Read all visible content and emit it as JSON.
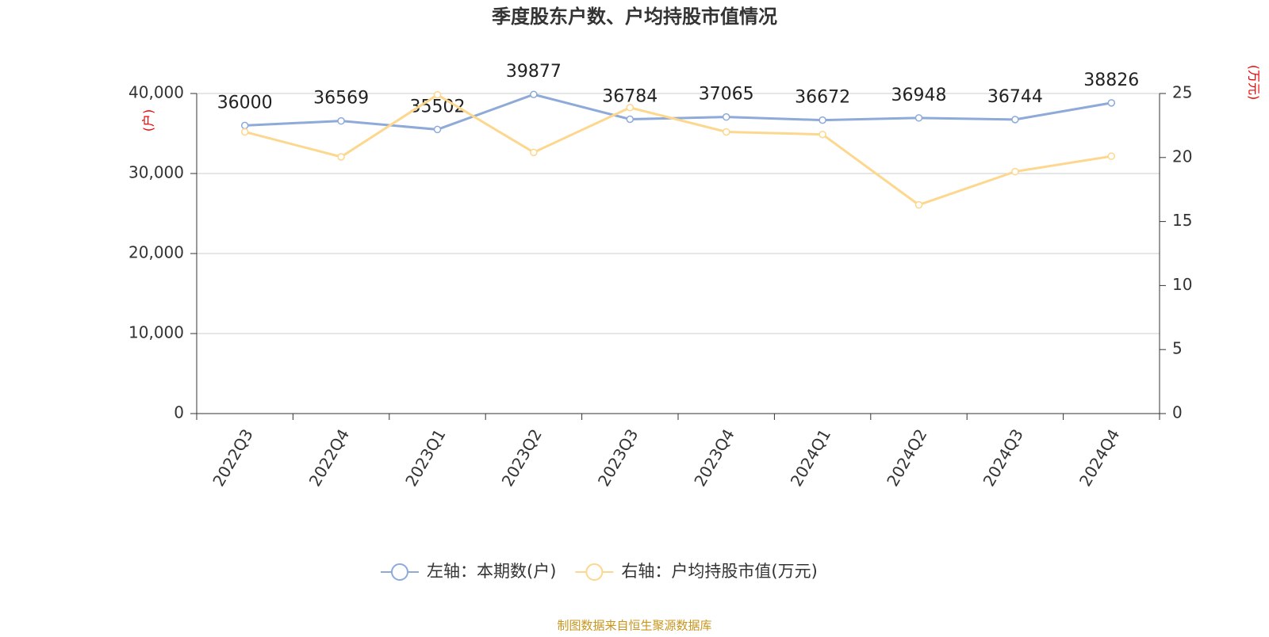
{
  "chart_data": {
    "type": "line",
    "title": "季度股东户数、户均持股市值情况",
    "y_label": "(户)",
    "y2_label": "(万元)",
    "source": "制图数据来自恒生聚源数据库",
    "categories": [
      "2022Q3",
      "2022Q4",
      "2023Q1",
      "2023Q2",
      "2023Q3",
      "2023Q4",
      "2024Q1",
      "2024Q2",
      "2024Q3",
      "2024Q4"
    ],
    "series": [
      {
        "name": "左轴：本期数(户)",
        "color": "#8eaad9",
        "axis": "y",
        "show_labels": true,
        "values": [
          36000,
          36569,
          35502,
          39877,
          36784,
          37065,
          36672,
          36948,
          36744,
          38826
        ]
      },
      {
        "name": "右轴：户均持股市值(万元)",
        "color": "#fdd78d",
        "axis": "y2",
        "show_labels": false,
        "values": [
          22.0,
          20.05,
          24.9,
          20.4,
          23.9,
          22.0,
          21.8,
          16.3,
          18.9,
          20.1
        ]
      }
    ],
    "ylim": [
      0,
      40000
    ],
    "yticks": [
      0,
      {
        "value": 10000,
        "label": "10,000"
      },
      {
        "value": 20000,
        "label": "20,000"
      },
      {
        "value": 30000,
        "label": "30,000"
      },
      {
        "value": 40000,
        "label": "40,000"
      }
    ],
    "y2lim": [
      0,
      25
    ],
    "y2ticks": [
      0,
      5,
      10,
      15,
      20,
      25
    ],
    "grid": true
  }
}
